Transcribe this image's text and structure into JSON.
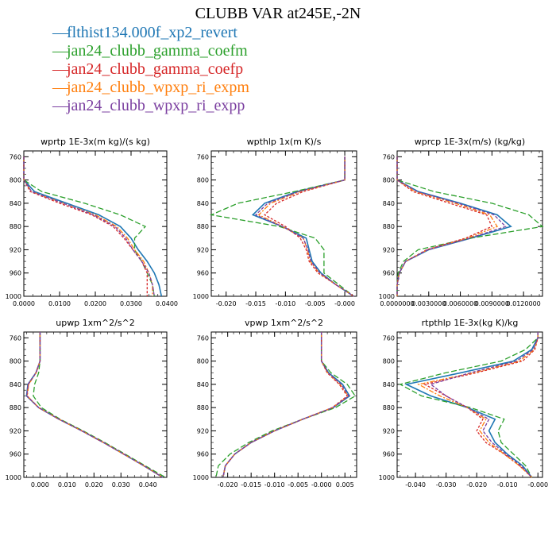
{
  "title": "CLUBB VAR at245E,-2N",
  "legend": [
    {
      "name": "flthist134.000f_xp2_revert",
      "color": "#1f77b4"
    },
    {
      "name": "jan24_clubb_gamma_coefm",
      "color": "#2ca02c"
    },
    {
      "name": "jan24_clubb_gamma_coefp",
      "color": "#d62728"
    },
    {
      "name": "jan24_clubb_wpxp_ri_expm",
      "color": "#ff7f0e"
    },
    {
      "name": "jan24_clubb_wpxp_ri_expp",
      "color": "#7b3fa0"
    }
  ],
  "legend_dash": "—",
  "chart_data": [
    {
      "type": "line",
      "title": "wprtp  1E-3x(m kg)/(s kg)",
      "xlim": [
        0.0,
        0.04
      ],
      "ylim": [
        1000,
        750
      ],
      "xticks": [
        "0.0000",
        "0.0100",
        "0.0200",
        "0.0300",
        "0.0400"
      ],
      "xtick_values": [
        0.0,
        0.01,
        0.02,
        0.03,
        0.04
      ],
      "yticks": [
        760,
        800,
        840,
        880,
        920,
        960,
        1000
      ],
      "y": [
        760,
        780,
        800,
        820,
        840,
        860,
        880,
        900,
        920,
        940,
        960,
        980,
        1000
      ],
      "series": [
        {
          "values": [
            0.0,
            0.0,
            0.0,
            0.003,
            0.012,
            0.021,
            0.027,
            0.03,
            0.032,
            0.0345,
            0.0365,
            0.0378,
            0.0385
          ]
        },
        {
          "values": [
            0.0,
            0.0,
            0.0,
            0.005,
            0.017,
            0.027,
            0.034,
            0.031,
            0.031,
            0.033,
            0.0345,
            0.036,
            0.0365
          ]
        },
        {
          "values": [
            0.0,
            0.0,
            0.0,
            0.0018,
            0.01,
            0.019,
            0.025,
            0.028,
            0.0305,
            0.033,
            0.0345,
            0.0345,
            0.0345
          ]
        },
        {
          "values": [
            0.0,
            0.0,
            0.0,
            0.0022,
            0.011,
            0.02,
            0.026,
            0.029,
            0.031,
            0.0335,
            0.035,
            0.036,
            0.036
          ]
        },
        {
          "values": [
            0.0,
            0.0,
            0.0,
            0.0022,
            0.011,
            0.0195,
            0.0255,
            0.0285,
            0.0305,
            0.033,
            0.035,
            0.036,
            0.0365
          ]
        }
      ]
    },
    {
      "type": "line",
      "title": "wpthlp  1x(m K)/s",
      "xlim": [
        -0.0225,
        0.002
      ],
      "ylim": [
        1000,
        750
      ],
      "xticks": [
        "-0.020",
        "-0.015",
        "-0.010",
        "-0.005",
        "-0.000"
      ],
      "xtick_values": [
        -0.02,
        -0.015,
        -0.01,
        -0.005,
        0.0
      ],
      "yticks": [
        760,
        800,
        840,
        880,
        920,
        960,
        1000
      ],
      "y": [
        760,
        780,
        800,
        820,
        840,
        860,
        880,
        900,
        920,
        940,
        960,
        980,
        1000
      ],
      "series": [
        {
          "values": [
            0.0,
            0.0,
            0.0,
            -0.008,
            -0.0135,
            -0.0155,
            -0.0105,
            -0.0065,
            -0.006,
            -0.0055,
            -0.004,
            -0.0015,
            0.0015
          ]
        },
        {
          "values": [
            0.0,
            0.0,
            0.0,
            -0.0085,
            -0.018,
            -0.0225,
            -0.011,
            -0.005,
            -0.0035,
            -0.0035,
            -0.0035,
            -0.001,
            0.0015
          ]
        },
        {
          "values": [
            0.0,
            0.0,
            0.0,
            -0.007,
            -0.0115,
            -0.0135,
            -0.01,
            -0.0075,
            -0.0065,
            -0.006,
            -0.0045,
            -0.0015,
            0.0015
          ]
        },
        {
          "values": [
            0.0,
            0.0,
            0.0,
            -0.0075,
            -0.0125,
            -0.0145,
            -0.0105,
            -0.007,
            -0.0063,
            -0.0058,
            -0.0043,
            -0.0015,
            0.0015
          ]
        },
        {
          "values": [
            0.0,
            0.0,
            0.0,
            -0.0078,
            -0.013,
            -0.015,
            -0.0105,
            -0.007,
            -0.0062,
            -0.0057,
            -0.0042,
            -0.0015,
            0.0015
          ]
        }
      ]
    },
    {
      "type": "line",
      "title": "wprcp  1E-3x(m/s) (kg/kg)",
      "xlim": [
        0.0,
        0.0138
      ],
      "ylim": [
        1000,
        750
      ],
      "xticks": [
        "0.0000000",
        "0.0030000",
        "0.0060000",
        "0.0090000",
        "0.0120000"
      ],
      "xtick_values": [
        0.0,
        0.003,
        0.006,
        0.009,
        0.012
      ],
      "yticks": [
        760,
        800,
        840,
        880,
        920,
        960,
        1000
      ],
      "y": [
        760,
        780,
        800,
        820,
        840,
        860,
        880,
        900,
        920,
        940,
        960,
        980,
        1000
      ],
      "series": [
        {
          "values": [
            0.0,
            0.0,
            0.0,
            0.002,
            0.006,
            0.0095,
            0.0108,
            0.007,
            0.003,
            0.0008,
            0.0002,
            0.0,
            0.0
          ]
        },
        {
          "values": [
            0.0,
            0.0,
            0.0,
            0.0035,
            0.009,
            0.0125,
            0.0138,
            0.007,
            0.002,
            0.0006,
            0.0001,
            0.0,
            0.0
          ]
        },
        {
          "values": [
            0.0,
            0.0,
            0.0,
            0.0015,
            0.005,
            0.0085,
            0.009,
            0.0065,
            0.0028,
            0.0008,
            0.0002,
            0.0,
            0.0
          ]
        },
        {
          "values": [
            0.0,
            0.0,
            0.0,
            0.0017,
            0.0055,
            0.0088,
            0.0095,
            0.0067,
            0.0029,
            0.0008,
            0.0002,
            0.0,
            0.0
          ]
        },
        {
          "values": [
            0.0,
            0.0,
            0.0,
            0.0019,
            0.0058,
            0.0092,
            0.0103,
            0.0069,
            0.0029,
            0.0008,
            0.0002,
            0.0,
            0.0
          ]
        }
      ]
    },
    {
      "type": "line",
      "title": "upwp  1xm^2/s^2",
      "xlim": [
        -0.006,
        0.047
      ],
      "ylim": [
        1000,
        750
      ],
      "xticks": [
        "0.000",
        "0.010",
        "0.020",
        "0.030",
        "0.040"
      ],
      "xtick_values": [
        0.0,
        0.01,
        0.02,
        0.03,
        0.04
      ],
      "yticks": [
        760,
        800,
        840,
        880,
        920,
        960,
        1000
      ],
      "y": [
        750,
        760,
        780,
        800,
        820,
        840,
        860,
        880,
        900,
        920,
        940,
        960,
        980,
        1000
      ],
      "series": [
        {
          "values": [
            0.0,
            0.0,
            0.0,
            0.0,
            -0.0015,
            -0.0045,
            -0.005,
            -0.0005,
            0.007,
            0.0155,
            0.0235,
            0.031,
            0.0385,
            0.0455
          ]
        },
        {
          "values": [
            0.0,
            0.0,
            0.0,
            0.0,
            -0.0005,
            -0.002,
            -0.0025,
            0.0005,
            0.0075,
            0.016,
            0.024,
            0.0315,
            0.039,
            0.0465
          ]
        },
        {
          "values": [
            0.0,
            0.0,
            0.0,
            0.0,
            -0.0015,
            -0.0043,
            -0.0048,
            -0.0005,
            0.007,
            0.0155,
            0.0235,
            0.031,
            0.0385,
            0.0455
          ]
        },
        {
          "values": [
            0.0,
            0.0,
            0.0,
            0.0,
            -0.0014,
            -0.0042,
            -0.0047,
            -0.0005,
            0.007,
            0.0155,
            0.0235,
            0.031,
            0.0385,
            0.0455
          ]
        },
        {
          "values": [
            0.0,
            0.0,
            0.0,
            0.0,
            -0.0015,
            -0.0044,
            -0.0049,
            -0.0005,
            0.007,
            0.0155,
            0.0235,
            0.031,
            0.0385,
            0.0455
          ]
        }
      ]
    },
    {
      "type": "line",
      "title": "vpwp  1xm^2/s^2",
      "xlim": [
        -0.0235,
        0.0075
      ],
      "ylim": [
        1000,
        750
      ],
      "xticks": [
        "-0.020",
        "-0.015",
        "-0.010",
        "-0.005",
        "-0.000",
        "0.005"
      ],
      "xtick_values": [
        -0.02,
        -0.015,
        -0.01,
        -0.005,
        0.0,
        0.005
      ],
      "yticks": [
        760,
        800,
        840,
        880,
        920,
        960,
        1000
      ],
      "y": [
        750,
        760,
        780,
        800,
        820,
        840,
        860,
        880,
        900,
        920,
        940,
        960,
        980,
        1000
      ],
      "series": [
        {
          "values": [
            0.0,
            0.0,
            0.0,
            0.0,
            0.0015,
            0.0045,
            0.006,
            0.0025,
            -0.004,
            -0.01,
            -0.015,
            -0.0185,
            -0.0205,
            -0.021
          ]
        },
        {
          "values": [
            0.0,
            0.0,
            0.0,
            0.0,
            0.002,
            0.0055,
            0.0072,
            0.003,
            -0.004,
            -0.0105,
            -0.0155,
            -0.0195,
            -0.022,
            -0.0225
          ]
        },
        {
          "values": [
            0.0,
            0.0,
            0.0,
            0.0,
            0.0012,
            0.0038,
            0.0055,
            0.0023,
            -0.004,
            -0.01,
            -0.015,
            -0.0185,
            -0.0205,
            -0.021
          ]
        },
        {
          "values": [
            0.0,
            0.0,
            0.0,
            0.0,
            0.0013,
            0.004,
            0.0057,
            0.0024,
            -0.004,
            -0.01,
            -0.015,
            -0.0185,
            -0.0205,
            -0.021
          ]
        },
        {
          "values": [
            0.0,
            0.0,
            0.0,
            0.0,
            0.0014,
            0.0042,
            0.0058,
            0.0024,
            -0.004,
            -0.01,
            -0.015,
            -0.0185,
            -0.0205,
            -0.021
          ]
        }
      ]
    },
    {
      "type": "line",
      "title": "rtpthlp  1E-3x(kg K)/kg",
      "xlim": [
        -0.046,
        0.0015
      ],
      "ylim": [
        1000,
        750
      ],
      "xticks": [
        "-0.040",
        "-0.030",
        "-0.020",
        "-0.010",
        "-0.000"
      ],
      "xtick_values": [
        -0.04,
        -0.03,
        -0.02,
        -0.01,
        0.0
      ],
      "yticks": [
        760,
        800,
        840,
        880,
        920,
        960,
        1000
      ],
      "y": [
        750,
        760,
        780,
        800,
        820,
        840,
        860,
        880,
        900,
        920,
        940,
        960,
        980,
        1000
      ],
      "series": [
        {
          "values": [
            0.0,
            0.0,
            -0.002,
            -0.008,
            -0.025,
            -0.043,
            -0.035,
            -0.023,
            -0.014,
            -0.016,
            -0.014,
            -0.01,
            -0.005,
            -0.002
          ]
        },
        {
          "values": [
            0.0,
            0.0,
            -0.004,
            -0.012,
            -0.03,
            -0.045,
            -0.038,
            -0.022,
            -0.011,
            -0.013,
            -0.012,
            -0.008,
            -0.004,
            -0.002
          ]
        },
        {
          "values": [
            0.0,
            0.0,
            -0.001,
            -0.005,
            -0.02,
            -0.037,
            -0.03,
            -0.023,
            -0.018,
            -0.02,
            -0.017,
            -0.011,
            -0.006,
            -0.002
          ]
        },
        {
          "values": [
            0.0,
            0.0,
            -0.0012,
            -0.006,
            -0.021,
            -0.039,
            -0.032,
            -0.023,
            -0.017,
            -0.019,
            -0.016,
            -0.011,
            -0.006,
            -0.002
          ]
        },
        {
          "values": [
            0.0,
            0.0,
            -0.0015,
            -0.007,
            -0.022,
            -0.035,
            -0.03,
            -0.023,
            -0.016,
            -0.018,
            -0.015,
            -0.0105,
            -0.0055,
            -0.002
          ]
        }
      ]
    }
  ]
}
